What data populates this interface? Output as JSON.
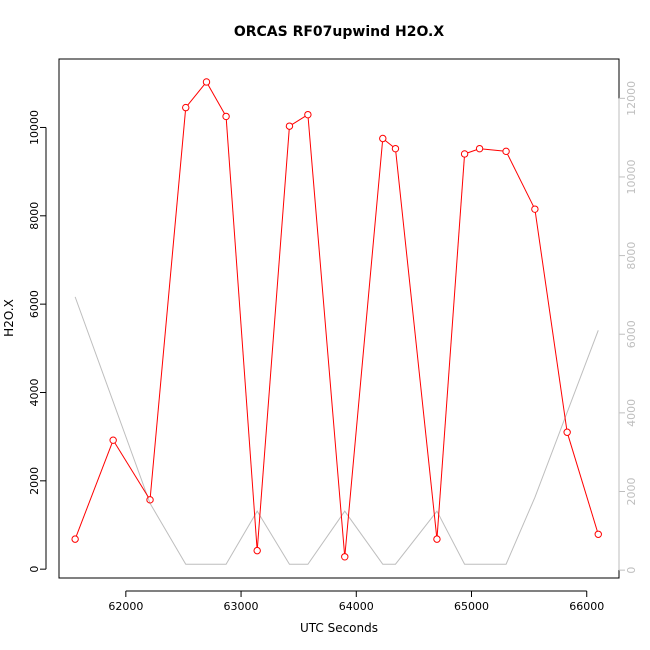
{
  "chart_data": {
    "type": "line",
    "title": "ORCAS RF07upwind H2O.X",
    "xlabel": "UTC Seconds",
    "ylabel": "H2O.X",
    "xlim": [
      61420,
      66280
    ],
    "ylim": [
      -200,
      11550
    ],
    "y2lim": [
      -200,
      13000
    ],
    "x_ticks": [
      "62000",
      "63000",
      "64000",
      "65000",
      "66000"
    ],
    "x_tick_values": [
      62000,
      63000,
      64000,
      65000,
      66000
    ],
    "y_ticks": [
      "0",
      "2000",
      "4000",
      "6000",
      "8000",
      "10000"
    ],
    "y_tick_values": [
      0,
      2000,
      4000,
      6000,
      8000,
      10000
    ],
    "y2_ticks": [
      "0",
      "2000",
      "4000",
      "6000",
      "8000",
      "10000",
      "12000"
    ],
    "y2_tick_values": [
      0,
      2000,
      4000,
      6000,
      8000,
      10000,
      12000
    ],
    "grid": false,
    "series": [
      {
        "color": "#ff0000",
        "markers": true,
        "axis": "left",
        "x": [
          61560,
          61890,
          62210,
          62520,
          62700,
          62870,
          63140,
          63420,
          63580,
          63900,
          64230,
          64340,
          64700,
          64940,
          65070,
          65300,
          65550,
          65830,
          66100
        ],
        "y": [
          680,
          2920,
          1570,
          10450,
          11030,
          10250,
          420,
          10030,
          10290,
          280,
          9750,
          9520,
          680,
          9400,
          9520,
          9460,
          8150,
          3100,
          790
        ]
      },
      {
        "color": "#bebebe",
        "markers": false,
        "axis": "right",
        "x": [
          61560,
          62210,
          62520,
          62870,
          63140,
          63420,
          63580,
          63900,
          64230,
          64340,
          64700,
          64940,
          65300,
          65550,
          66100
        ],
        "y": [
          6950,
          1700,
          150,
          150,
          1500,
          150,
          150,
          1500,
          150,
          150,
          1500,
          150,
          150,
          1850,
          6100
        ]
      }
    ]
  }
}
